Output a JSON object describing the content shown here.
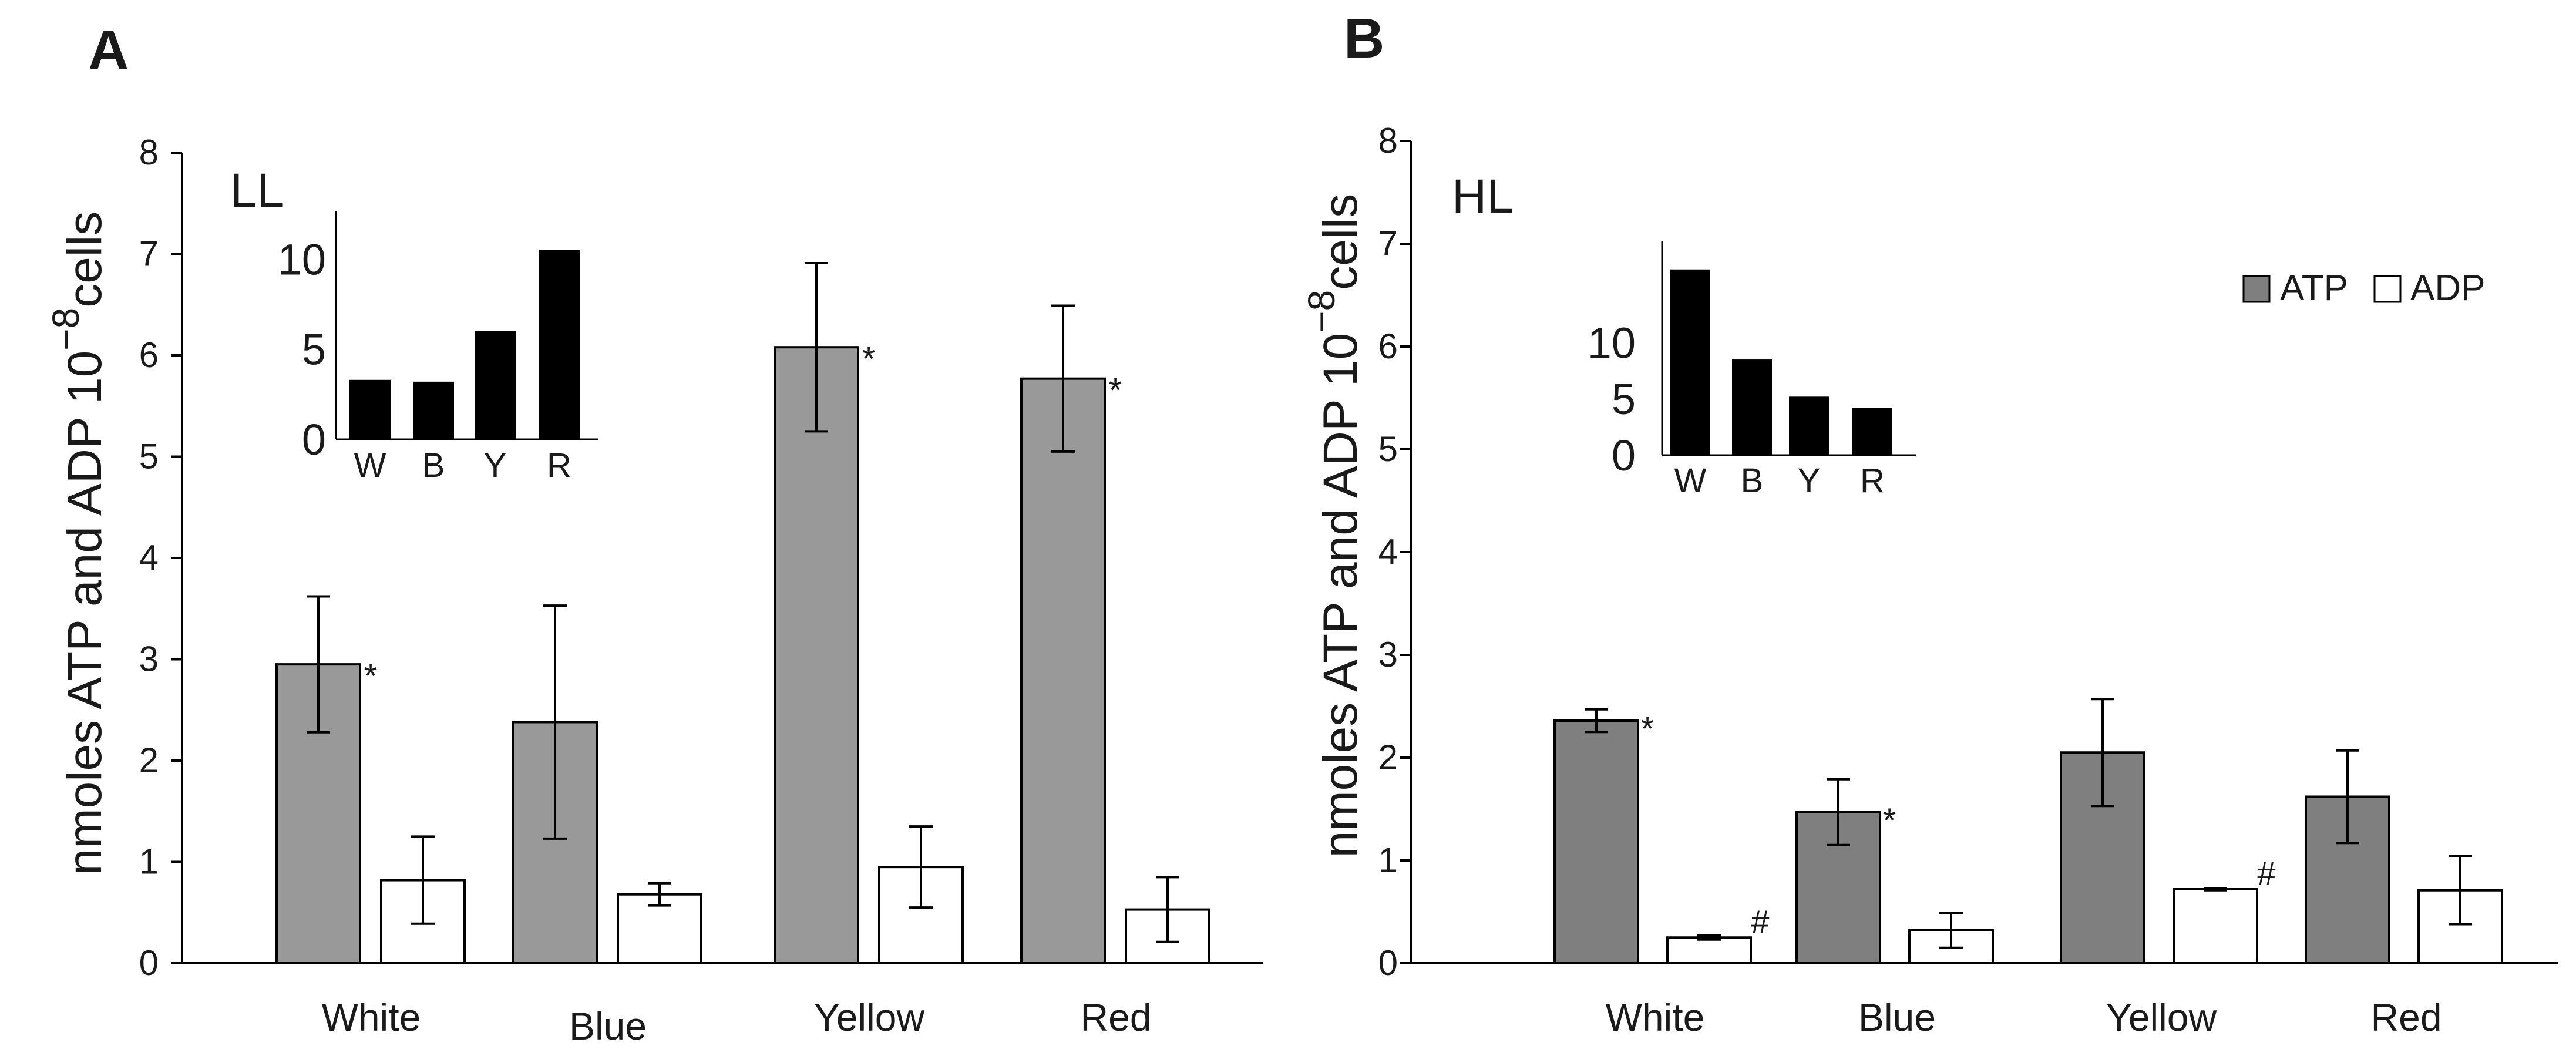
{
  "chart_data": [
    {
      "panel_letter": "A",
      "type": "bar",
      "condition_label": "LL",
      "ylabel_main": "nmoles ATP and ADP 10",
      "ylabel_exp": "−8",
      "ylabel_tail": "cells",
      "ylim": [
        0,
        8
      ],
      "yticks": [
        0,
        1,
        2,
        3,
        4,
        5,
        6,
        7,
        8
      ],
      "categories": [
        "White",
        "Blue",
        "Yellow",
        "Red"
      ],
      "series": [
        {
          "key": "atp",
          "color": "#999999",
          "values": [
            2.95,
            2.38,
            6.08,
            5.77
          ],
          "errors": [
            0.67,
            1.15,
            0.83,
            0.72
          ],
          "marks": [
            "*",
            "",
            "*",
            "*"
          ]
        },
        {
          "key": "adp",
          "color": "#ffffff",
          "values": [
            0.82,
            0.68,
            0.95,
            0.53
          ],
          "errors": [
            0.43,
            0.11,
            0.4,
            0.32
          ],
          "marks": [
            "",
            "",
            "",
            ""
          ]
        }
      ],
      "inset": {
        "categories": [
          "W",
          "B",
          "Y",
          "R"
        ],
        "values": [
          3.3,
          3.2,
          6.0,
          10.5
        ],
        "ylim": [
          0,
          12
        ],
        "yticks": [
          0,
          5,
          10
        ],
        "color": "#000000"
      }
    },
    {
      "panel_letter": "B",
      "type": "bar",
      "condition_label": "HL",
      "ylabel_main": "nmoles ATP and ADP 10",
      "ylabel_exp": "−8",
      "ylabel_tail": "cells",
      "ylim": [
        0,
        8
      ],
      "yticks": [
        0,
        1,
        2,
        3,
        4,
        5,
        6,
        7,
        8
      ],
      "categories": [
        "White",
        "Blue",
        "Yellow",
        "Red"
      ],
      "legend": {
        "position": "top-right",
        "items": [
          "ATP",
          "ADP"
        ]
      },
      "series": [
        {
          "key": "atp",
          "color": "#7f7f7f",
          "values": [
            2.36,
            1.47,
            2.05,
            1.62
          ],
          "errors": [
            0.11,
            0.32,
            0.52,
            0.45
          ],
          "marks": [
            "*",
            "*",
            "",
            ""
          ]
        },
        {
          "key": "adp",
          "color": "#ffffff",
          "values": [
            0.25,
            0.32,
            0.72,
            0.71
          ],
          "errors": [
            0.02,
            0.17,
            0.01,
            0.33
          ],
          "marks": [
            "#",
            "",
            "#",
            ""
          ]
        }
      ],
      "inset": {
        "categories": [
          "W",
          "B",
          "Y",
          "R"
        ],
        "values": [
          16.5,
          8.5,
          5.2,
          4.2
        ],
        "ylim": [
          0,
          18
        ],
        "yticks": [
          0,
          5,
          10
        ],
        "color": "#000000"
      }
    }
  ]
}
